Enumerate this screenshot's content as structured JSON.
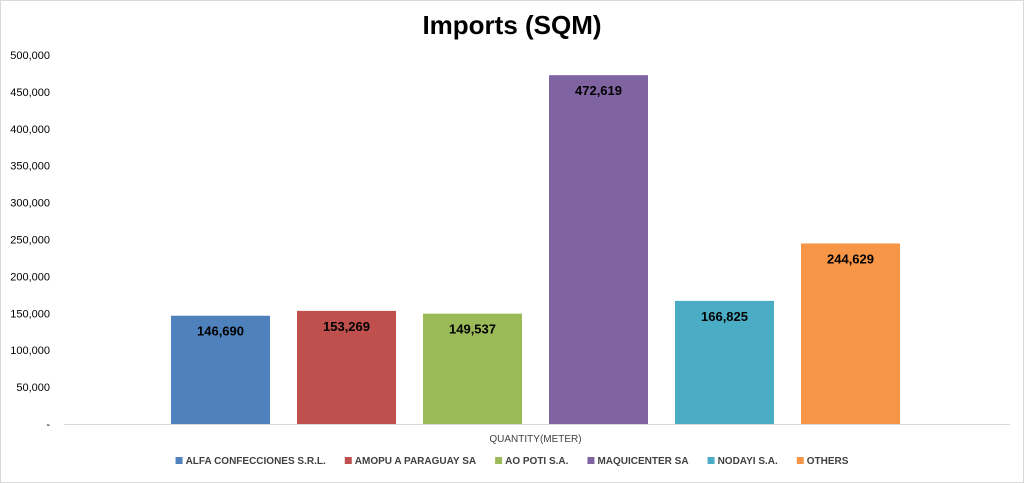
{
  "chart_data": {
    "type": "bar",
    "title": "Imports (SQM)",
    "xlabel": "QUANTITY(METER)",
    "ylabel": "",
    "categories": [
      "QUANTITY(METER)"
    ],
    "series": [
      {
        "name": "ALFA CONFECCIONES S.R.L.",
        "values": [
          146690
        ],
        "label": "146,690",
        "color": "#4f81bd"
      },
      {
        "name": "AMOPU A PARAGUAY SA",
        "values": [
          153269
        ],
        "label": "153,269",
        "color": "#c0504d"
      },
      {
        "name": "AO POTI  S.A.",
        "values": [
          149537
        ],
        "label": "149,537",
        "color": "#9bbb59"
      },
      {
        "name": "MAQUICENTER SA",
        "values": [
          472619
        ],
        "label": "472,619",
        "color": "#8064a2"
      },
      {
        "name": "NODAYI S.A.",
        "values": [
          166825
        ],
        "label": "166,825",
        "color": "#4bacc6"
      },
      {
        "name": "OTHERS",
        "values": [
          244629
        ],
        "label": "244,629",
        "color": "#f79646"
      }
    ],
    "ylim": [
      0,
      500000
    ],
    "yticks": [
      0,
      50000,
      100000,
      150000,
      200000,
      250000,
      300000,
      350000,
      400000,
      450000,
      500000
    ],
    "ytick_labels": [
      "-",
      "50,000",
      "100,000",
      "150,000",
      "200,000",
      "250,000",
      "300,000",
      "350,000",
      "400,000",
      "450,000",
      "500,000"
    ],
    "grid": false,
    "legend": "bottom"
  }
}
